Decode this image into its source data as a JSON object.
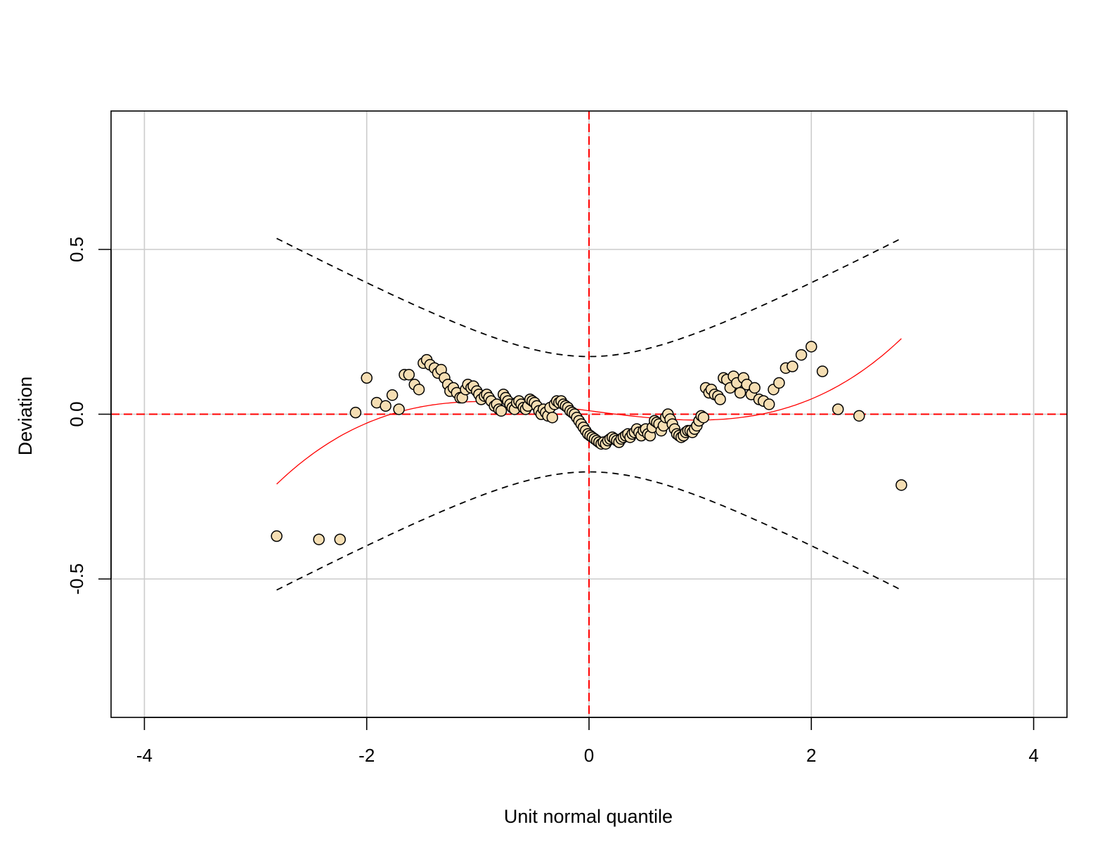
{
  "chart_data": {
    "type": "scatter",
    "title": "",
    "xlabel": "Unit normal quantile",
    "ylabel": "Deviation",
    "xlim": [
      -4.3,
      4.3
    ],
    "ylim": [
      -0.92,
      0.92
    ],
    "x_ticks": [
      -4,
      -2,
      0,
      2,
      4
    ],
    "x_tick_labels": [
      "-4",
      "-2",
      "0",
      "2",
      "4"
    ],
    "y_ticks": [
      -0.5,
      0.0,
      0.5
    ],
    "y_tick_labels": [
      "-0.5",
      "0.0",
      "0.5"
    ],
    "grid": true,
    "colors": {
      "point_fill": "#F5DEB3",
      "point_stroke": "#000000",
      "reference_lines": "#FF0000",
      "trend_line": "#FF0000",
      "confidence_band": "#000000",
      "grid": "#CCCCCC"
    },
    "points": [
      {
        "x": -2.81,
        "y": -0.37
      },
      {
        "x": -2.43,
        "y": -0.38
      },
      {
        "x": -2.24,
        "y": -0.38
      },
      {
        "x": -2.1,
        "y": 0.005
      },
      {
        "x": -2.0,
        "y": 0.11
      },
      {
        "x": -1.91,
        "y": 0.035
      },
      {
        "x": -1.83,
        "y": 0.025
      },
      {
        "x": -1.77,
        "y": 0.058
      },
      {
        "x": -1.71,
        "y": 0.015
      },
      {
        "x": -1.66,
        "y": 0.12
      },
      {
        "x": -1.62,
        "y": 0.12
      },
      {
        "x": -1.57,
        "y": 0.09
      },
      {
        "x": -1.53,
        "y": 0.075
      },
      {
        "x": -1.49,
        "y": 0.155
      },
      {
        "x": -1.46,
        "y": 0.165
      },
      {
        "x": -1.43,
        "y": 0.15
      },
      {
        "x": -1.39,
        "y": 0.14
      },
      {
        "x": -1.36,
        "y": 0.125
      },
      {
        "x": -1.33,
        "y": 0.135
      },
      {
        "x": -1.3,
        "y": 0.11
      },
      {
        "x": -1.27,
        "y": 0.09
      },
      {
        "x": -1.25,
        "y": 0.07
      },
      {
        "x": -1.22,
        "y": 0.08
      },
      {
        "x": -1.19,
        "y": 0.065
      },
      {
        "x": -1.16,
        "y": 0.05
      },
      {
        "x": -1.14,
        "y": 0.05
      },
      {
        "x": -1.11,
        "y": 0.075
      },
      {
        "x": -1.09,
        "y": 0.09
      },
      {
        "x": -1.06,
        "y": 0.08
      },
      {
        "x": -1.04,
        "y": 0.085
      },
      {
        "x": -1.01,
        "y": 0.07
      },
      {
        "x": -0.99,
        "y": 0.06
      },
      {
        "x": -0.97,
        "y": 0.045
      },
      {
        "x": -0.94,
        "y": 0.055
      },
      {
        "x": -0.92,
        "y": 0.06
      },
      {
        "x": -0.9,
        "y": 0.05
      },
      {
        "x": -0.88,
        "y": 0.04
      },
      {
        "x": -0.85,
        "y": 0.025
      },
      {
        "x": -0.83,
        "y": 0.03
      },
      {
        "x": -0.81,
        "y": 0.015
      },
      {
        "x": -0.79,
        "y": 0.01
      },
      {
        "x": -0.77,
        "y": 0.06
      },
      {
        "x": -0.75,
        "y": 0.05
      },
      {
        "x": -0.73,
        "y": 0.04
      },
      {
        "x": -0.71,
        "y": 0.03
      },
      {
        "x": -0.69,
        "y": 0.02
      },
      {
        "x": -0.67,
        "y": 0.015
      },
      {
        "x": -0.65,
        "y": 0.035
      },
      {
        "x": -0.63,
        "y": 0.04
      },
      {
        "x": -0.61,
        "y": 0.03
      },
      {
        "x": -0.59,
        "y": 0.02
      },
      {
        "x": -0.57,
        "y": 0.015
      },
      {
        "x": -0.55,
        "y": 0.025
      },
      {
        "x": -0.53,
        "y": 0.045
      },
      {
        "x": -0.51,
        "y": 0.04
      },
      {
        "x": -0.49,
        "y": 0.035
      },
      {
        "x": -0.47,
        "y": 0.025
      },
      {
        "x": -0.45,
        "y": 0.01
      },
      {
        "x": -0.43,
        "y": 0.0
      },
      {
        "x": -0.41,
        "y": 0.015
      },
      {
        "x": -0.39,
        "y": 0.005
      },
      {
        "x": -0.37,
        "y": -0.005
      },
      {
        "x": -0.35,
        "y": 0.02
      },
      {
        "x": -0.33,
        "y": -0.01
      },
      {
        "x": -0.31,
        "y": 0.03
      },
      {
        "x": -0.29,
        "y": 0.04
      },
      {
        "x": -0.27,
        "y": 0.035
      },
      {
        "x": -0.25,
        "y": 0.04
      },
      {
        "x": -0.23,
        "y": 0.03
      },
      {
        "x": -0.21,
        "y": 0.025
      },
      {
        "x": -0.19,
        "y": 0.02
      },
      {
        "x": -0.17,
        "y": 0.01
      },
      {
        "x": -0.15,
        "y": 0.005
      },
      {
        "x": -0.13,
        "y": 0.0
      },
      {
        "x": -0.11,
        "y": -0.01
      },
      {
        "x": -0.09,
        "y": -0.02
      },
      {
        "x": -0.07,
        "y": -0.03
      },
      {
        "x": -0.05,
        "y": -0.04
      },
      {
        "x": -0.03,
        "y": -0.05
      },
      {
        "x": -0.01,
        "y": -0.06
      },
      {
        "x": 0.01,
        "y": -0.065
      },
      {
        "x": 0.03,
        "y": -0.07
      },
      {
        "x": 0.05,
        "y": -0.075
      },
      {
        "x": 0.07,
        "y": -0.08
      },
      {
        "x": 0.09,
        "y": -0.085
      },
      {
        "x": 0.11,
        "y": -0.09
      },
      {
        "x": 0.13,
        "y": -0.085
      },
      {
        "x": 0.15,
        "y": -0.09
      },
      {
        "x": 0.17,
        "y": -0.08
      },
      {
        "x": 0.19,
        "y": -0.075
      },
      {
        "x": 0.21,
        "y": -0.07
      },
      {
        "x": 0.23,
        "y": -0.075
      },
      {
        "x": 0.25,
        "y": -0.08
      },
      {
        "x": 0.27,
        "y": -0.085
      },
      {
        "x": 0.29,
        "y": -0.075
      },
      {
        "x": 0.31,
        "y": -0.07
      },
      {
        "x": 0.33,
        "y": -0.065
      },
      {
        "x": 0.35,
        "y": -0.06
      },
      {
        "x": 0.37,
        "y": -0.07
      },
      {
        "x": 0.39,
        "y": -0.06
      },
      {
        "x": 0.41,
        "y": -0.055
      },
      {
        "x": 0.43,
        "y": -0.045
      },
      {
        "x": 0.45,
        "y": -0.055
      },
      {
        "x": 0.47,
        "y": -0.065
      },
      {
        "x": 0.49,
        "y": -0.05
      },
      {
        "x": 0.51,
        "y": -0.045
      },
      {
        "x": 0.53,
        "y": -0.06
      },
      {
        "x": 0.55,
        "y": -0.065
      },
      {
        "x": 0.57,
        "y": -0.04
      },
      {
        "x": 0.59,
        "y": -0.02
      },
      {
        "x": 0.61,
        "y": -0.025
      },
      {
        "x": 0.63,
        "y": -0.03
      },
      {
        "x": 0.65,
        "y": -0.05
      },
      {
        "x": 0.67,
        "y": -0.035
      },
      {
        "x": 0.69,
        "y": -0.01
      },
      {
        "x": 0.71,
        "y": 0.0
      },
      {
        "x": 0.73,
        "y": -0.015
      },
      {
        "x": 0.75,
        "y": -0.03
      },
      {
        "x": 0.77,
        "y": -0.045
      },
      {
        "x": 0.79,
        "y": -0.06
      },
      {
        "x": 0.81,
        "y": -0.065
      },
      {
        "x": 0.83,
        "y": -0.07
      },
      {
        "x": 0.85,
        "y": -0.065
      },
      {
        "x": 0.87,
        "y": -0.055
      },
      {
        "x": 0.89,
        "y": -0.05
      },
      {
        "x": 0.91,
        "y": -0.05
      },
      {
        "x": 0.93,
        "y": -0.055
      },
      {
        "x": 0.95,
        "y": -0.045
      },
      {
        "x": 0.97,
        "y": -0.035
      },
      {
        "x": 0.99,
        "y": -0.02
      },
      {
        "x": 1.01,
        "y": -0.005
      },
      {
        "x": 1.03,
        "y": -0.01
      },
      {
        "x": 1.05,
        "y": 0.08
      },
      {
        "x": 1.08,
        "y": 0.065
      },
      {
        "x": 1.1,
        "y": 0.075
      },
      {
        "x": 1.13,
        "y": 0.06
      },
      {
        "x": 1.16,
        "y": 0.055
      },
      {
        "x": 1.18,
        "y": 0.045
      },
      {
        "x": 1.21,
        "y": 0.11
      },
      {
        "x": 1.24,
        "y": 0.105
      },
      {
        "x": 1.27,
        "y": 0.08
      },
      {
        "x": 1.3,
        "y": 0.115
      },
      {
        "x": 1.33,
        "y": 0.095
      },
      {
        "x": 1.36,
        "y": 0.065
      },
      {
        "x": 1.39,
        "y": 0.11
      },
      {
        "x": 1.42,
        "y": 0.09
      },
      {
        "x": 1.46,
        "y": 0.06
      },
      {
        "x": 1.49,
        "y": 0.08
      },
      {
        "x": 1.53,
        "y": 0.045
      },
      {
        "x": 1.57,
        "y": 0.04
      },
      {
        "x": 1.62,
        "y": 0.03
      },
      {
        "x": 1.66,
        "y": 0.075
      },
      {
        "x": 1.71,
        "y": 0.095
      },
      {
        "x": 1.77,
        "y": 0.14
      },
      {
        "x": 1.83,
        "y": 0.145
      },
      {
        "x": 1.91,
        "y": 0.18
      },
      {
        "x": 2.0,
        "y": 0.205
      },
      {
        "x": 2.1,
        "y": 0.13
      },
      {
        "x": 2.24,
        "y": 0.015
      },
      {
        "x": 2.43,
        "y": -0.005
      },
      {
        "x": 2.81,
        "y": -0.215
      }
    ],
    "reference_lines": {
      "x": 0,
      "y": 0
    },
    "trend_line": {
      "x_range": [
        -2.81,
        2.81
      ]
    },
    "confidence_band": {
      "x_range": [
        -2.81,
        2.81
      ],
      "center_halfwidth": 0.175
    }
  }
}
